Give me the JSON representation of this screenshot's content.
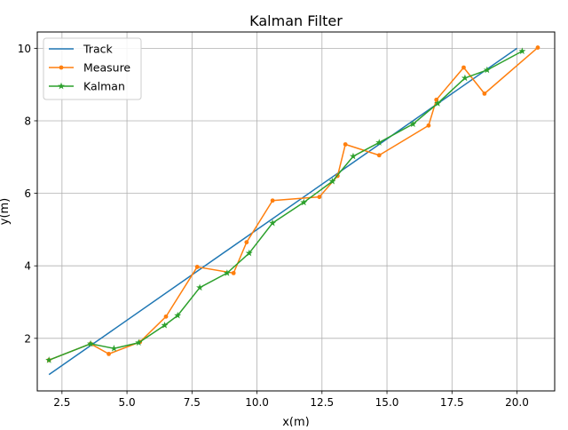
{
  "chart_data": {
    "type": "line",
    "title": "Kalman Filter",
    "xlabel": "x(m)",
    "ylabel": "y(m)",
    "xlim": [
      1.55,
      21.45
    ],
    "ylim": [
      0.55,
      10.45
    ],
    "xticks": [
      2.5,
      5.0,
      7.5,
      10.0,
      12.5,
      15.0,
      17.5,
      20.0
    ],
    "xtick_labels": [
      "2.5",
      "5.0",
      "7.5",
      "10.0",
      "12.5",
      "15.0",
      "17.5",
      "20.0"
    ],
    "yticks": [
      2,
      4,
      6,
      8,
      10
    ],
    "ytick_labels": [
      "2",
      "4",
      "6",
      "8",
      "10"
    ],
    "grid": true,
    "legend_position": "top-left",
    "series": [
      {
        "name": "Track",
        "color": "#1f77b4",
        "marker": "none",
        "x": [
          2.0,
          20.0
        ],
        "y": [
          1.0,
          10.0
        ]
      },
      {
        "name": "Measure",
        "color": "#ff7f0e",
        "marker": "dot",
        "x": [
          2.0,
          3.6,
          4.3,
          5.5,
          6.5,
          7.7,
          9.1,
          9.6,
          10.6,
          12.4,
          13.1,
          13.4,
          14.7,
          16.6,
          16.9,
          17.95,
          18.75,
          20.8
        ],
        "y": [
          1.4,
          1.85,
          1.57,
          1.9,
          2.6,
          3.97,
          3.8,
          4.65,
          5.8,
          5.9,
          6.48,
          7.35,
          7.05,
          7.87,
          8.58,
          9.47,
          8.75,
          10.02
        ]
      },
      {
        "name": "Kalman",
        "color": "#2ca02c",
        "marker": "star",
        "x": [
          2.0,
          3.6,
          4.5,
          5.45,
          6.45,
          6.95,
          7.8,
          8.85,
          9.7,
          10.6,
          11.8,
          12.9,
          13.7,
          14.7,
          16.0,
          16.95,
          18.0,
          18.85,
          20.2
        ],
        "y": [
          1.4,
          1.85,
          1.72,
          1.88,
          2.36,
          2.63,
          3.4,
          3.8,
          4.35,
          5.18,
          5.75,
          6.33,
          7.02,
          7.4,
          7.91,
          8.48,
          9.18,
          9.4,
          9.92
        ]
      }
    ]
  }
}
